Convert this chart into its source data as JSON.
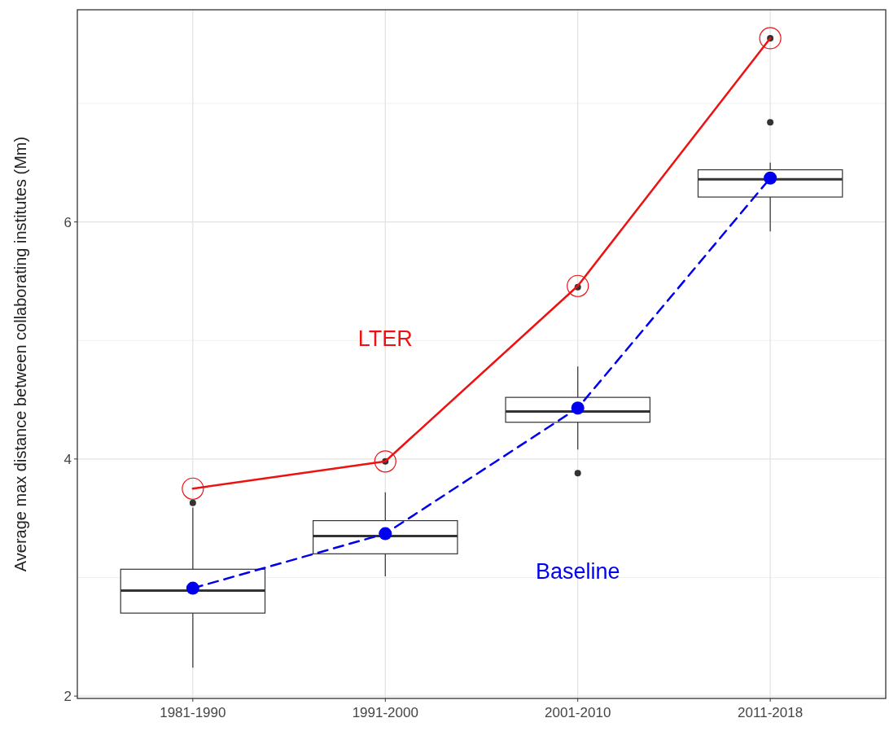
{
  "chart_data": {
    "type": "box",
    "ylabel": "Average max distance between collaborating institutes (Mm)",
    "categories": [
      "1981-1990",
      "1991-2000",
      "2001-2010",
      "2011-2018"
    ],
    "boxes": [
      {
        "low": 2.24,
        "q1": 2.7,
        "median": 2.89,
        "q3": 3.07,
        "high": 3.59,
        "outliers": [
          3.63
        ]
      },
      {
        "low": 3.01,
        "q1": 3.2,
        "median": 3.35,
        "q3": 3.48,
        "high": 3.72,
        "outliers": [
          3.98
        ]
      },
      {
        "low": 4.08,
        "q1": 4.31,
        "median": 4.4,
        "q3": 4.52,
        "high": 4.78,
        "outliers": [
          3.88,
          5.45
        ]
      },
      {
        "low": 5.92,
        "q1": 6.21,
        "median": 6.36,
        "q3": 6.44,
        "high": 6.5,
        "outliers": [
          6.84,
          7.55
        ]
      }
    ],
    "series": [
      {
        "name": "LTER",
        "type": "line",
        "color": "#ee1111",
        "marker": "circle",
        "line_style": "solid",
        "values": [
          3.75,
          3.98,
          5.46,
          7.55
        ]
      },
      {
        "name": "Baseline",
        "type": "line",
        "color": "#0000ee",
        "marker": "circle",
        "line_style": "dashed",
        "values": [
          2.91,
          3.37,
          4.43,
          6.37
        ]
      }
    ],
    "ylim": [
      1.98,
      7.79
    ],
    "yticks": [
      2,
      4,
      6
    ],
    "grid": true
  }
}
